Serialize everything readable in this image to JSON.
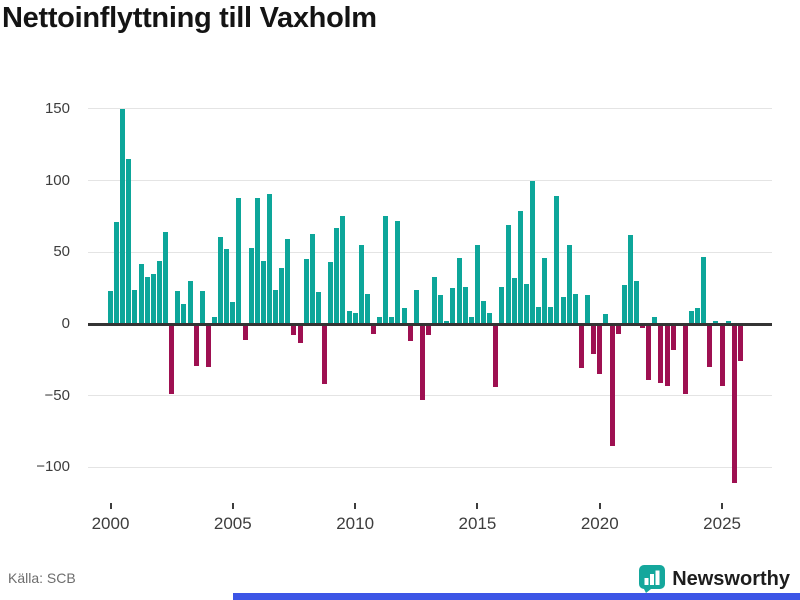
{
  "header": {
    "title": "Nettoinflyttning till Vaxholm"
  },
  "footer": {
    "source": "Källa: SCB",
    "brand": "Newsworthy"
  },
  "colors": {
    "positive_bar": "#0da69a",
    "negative_bar": "#9e1051",
    "axis_line": "#343434",
    "gridline": "#e4e4e4",
    "banner_blue": "#3c55e6",
    "brand_teal": "#14a79c"
  },
  "chart_data": {
    "type": "bar",
    "title": "Nettoinflyttning till Vaxholm",
    "frequency": "quarterly",
    "x_start": {
      "year": 2000,
      "quarter": 1
    },
    "values": [
      23,
      71,
      150,
      115,
      24,
      42,
      33,
      35,
      44,
      64,
      -49,
      23,
      14,
      30,
      -29,
      23,
      -30,
      5,
      61,
      52,
      15,
      88,
      -11,
      53,
      88,
      44,
      91,
      24,
      39,
      59,
      -8,
      -13,
      45,
      63,
      22,
      -42,
      43,
      67,
      75,
      9,
      8,
      55,
      21,
      -7,
      5,
      75,
      5,
      72,
      11,
      -12,
      24,
      -53,
      -8,
      33,
      20,
      2,
      25,
      46,
      26,
      5,
      55,
      16,
      8,
      -44,
      26,
      69,
      32,
      79,
      28,
      100,
      12,
      46,
      12,
      89,
      19,
      55,
      21,
      -31,
      20,
      -21,
      -35,
      7,
      -85,
      -7,
      27,
      62,
      30,
      -3,
      -39,
      5,
      -41,
      -43,
      -18,
      0,
      -49,
      9,
      11,
      47,
      -30,
      2,
      -43,
      2,
      -111,
      -26
    ],
    "x_tick_years": [
      2000,
      2005,
      2010,
      2015,
      2020,
      2025
    ],
    "x_tick_labels": [
      "2000",
      "2005",
      "2010",
      "2015",
      "2020",
      "2025"
    ],
    "y_ticks": [
      150,
      100,
      50,
      0,
      -50,
      -100
    ],
    "y_tick_labels": [
      "150",
      "100",
      "50",
      "0",
      "−50",
      "−100"
    ],
    "ylim": [
      -125,
      165
    ],
    "grid": "horizontal",
    "legend": "none"
  }
}
